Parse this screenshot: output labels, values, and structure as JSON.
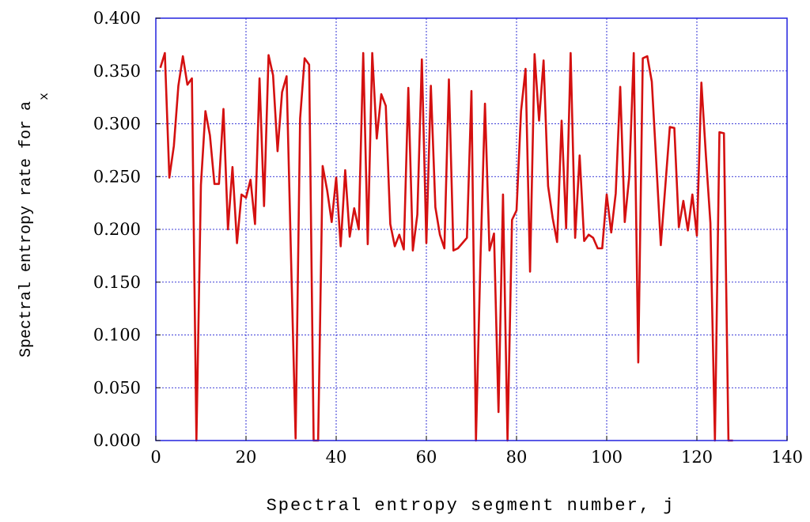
{
  "chart_data": {
    "type": "line",
    "xlabel": "Spectral entropy segment number, j",
    "ylabel": "Spectral entropy rate for a",
    "ylabel_subscript": "x",
    "xlim": [
      0,
      140
    ],
    "ylim": [
      0,
      0.4
    ],
    "x_ticks": [
      "0",
      "20",
      "40",
      "60",
      "80",
      "100",
      "120",
      "140"
    ],
    "y_ticks": [
      "0.000",
      "0.050",
      "0.100",
      "0.150",
      "0.200",
      "0.250",
      "0.300",
      "0.350",
      "0.400"
    ],
    "x_tick_values": [
      0,
      20,
      40,
      60,
      80,
      100,
      120,
      140
    ],
    "y_tick_values": [
      0,
      0.05,
      0.1,
      0.15,
      0.2,
      0.25,
      0.3,
      0.35,
      0.4
    ],
    "grid": true,
    "colors": {
      "line": "#d41010",
      "grid": "#0000cc",
      "frame": "#2222dd"
    },
    "series": [
      {
        "x": [
          1,
          2,
          3,
          4,
          5,
          6,
          7,
          8,
          9,
          10,
          11,
          12,
          13,
          14,
          15,
          16,
          17,
          18,
          19,
          20,
          21,
          22,
          23,
          24,
          25,
          26,
          27,
          28,
          29,
          30,
          31,
          32,
          33,
          34,
          35,
          36,
          37,
          38,
          39,
          40,
          41,
          42,
          43,
          44,
          45,
          46,
          47,
          48,
          49,
          50,
          51,
          52,
          53,
          54,
          55,
          56,
          57,
          58,
          59,
          60,
          61,
          62,
          63,
          64,
          65,
          66,
          67,
          68,
          69,
          70,
          71,
          72,
          73,
          74,
          75,
          76,
          77,
          78,
          79,
          80,
          81,
          82,
          83,
          84,
          85,
          86,
          87,
          88,
          89,
          90,
          91,
          92,
          93,
          94,
          95,
          96,
          97,
          98,
          99,
          100,
          101,
          102,
          103,
          104,
          105,
          106,
          107,
          108,
          109,
          110,
          111,
          112,
          113,
          114,
          115,
          116,
          117,
          118,
          119,
          120,
          121,
          122,
          123,
          124,
          125,
          126,
          127,
          128
        ],
        "values": [
          0.353,
          0.367,
          0.249,
          0.279,
          0.336,
          0.364,
          0.337,
          0.343,
          0.0,
          0.242,
          0.312,
          0.289,
          0.243,
          0.243,
          0.314,
          0.2,
          0.259,
          0.187,
          0.233,
          0.23,
          0.247,
          0.205,
          0.343,
          0.222,
          0.365,
          0.346,
          0.274,
          0.33,
          0.345,
          0.171,
          0.002,
          0.305,
          0.362,
          0.356,
          0.0,
          0.0,
          0.26,
          0.237,
          0.207,
          0.249,
          0.184,
          0.256,
          0.193,
          0.22,
          0.2,
          0.367,
          0.186,
          0.367,
          0.286,
          0.328,
          0.317,
          0.205,
          0.184,
          0.195,
          0.181,
          0.334,
          0.18,
          0.214,
          0.361,
          0.187,
          0.336,
          0.221,
          0.195,
          0.182,
          0.342,
          0.18,
          0.182,
          0.187,
          0.192,
          0.331,
          0.0,
          0.172,
          0.319,
          0.18,
          0.196,
          0.027,
          0.233,
          0.0,
          0.209,
          0.218,
          0.312,
          0.352,
          0.16,
          0.366,
          0.303,
          0.36,
          0.241,
          0.211,
          0.188,
          0.303,
          0.201,
          0.367,
          0.192,
          0.27,
          0.189,
          0.195,
          0.192,
          0.182,
          0.182,
          0.233,
          0.197,
          0.234,
          0.335,
          0.207,
          0.25,
          0.367,
          0.074,
          0.362,
          0.364,
          0.34,
          0.263,
          0.185,
          0.241,
          0.297,
          0.296,
          0.202,
          0.227,
          0.199,
          0.233,
          0.194,
          0.339,
          0.27,
          0.206,
          0.0,
          0.292,
          0.291,
          0.0,
          0.0
        ]
      }
    ]
  }
}
